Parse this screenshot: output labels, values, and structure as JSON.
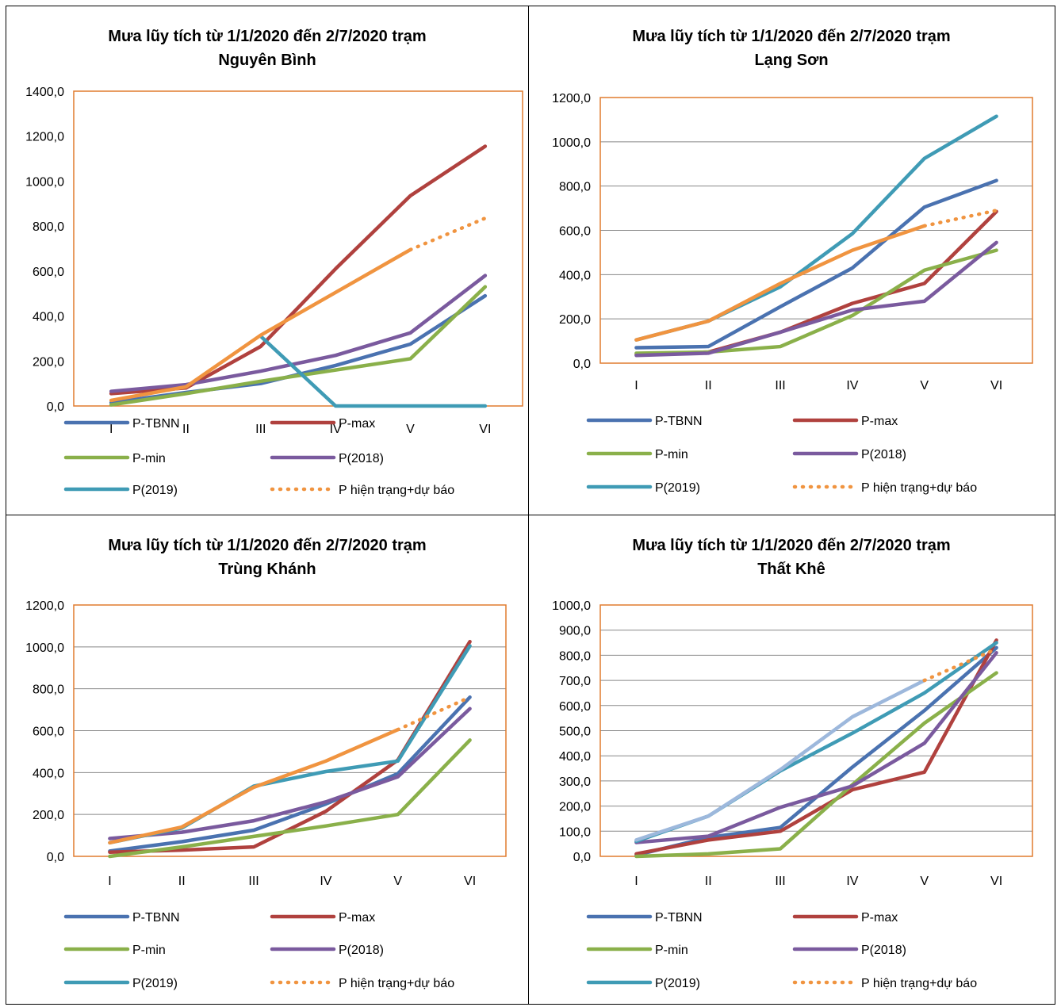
{
  "colors": {
    "P-TBNN": "#4a72b0",
    "P-max": "#b0413e",
    "P-min": "#8ab04a",
    "P(2018)": "#7a5a9e",
    "P(2019)": "#3f9bb5",
    "P hiện trạng+dự báo": "#f09440",
    "plot_border": "#e07b2e",
    "grid": "#888888"
  },
  "legend": {
    "labels": [
      "P-TBNN",
      "P-max",
      "P-min",
      "P(2018)",
      "P(2019)",
      "P hiện trạng+dự báo"
    ]
  },
  "chart_data": [
    {
      "type": "line",
      "title_line1": "Mưa lũy tích từ 1/1/2020 đến 2/7/2020 trạm",
      "title_line2": "Nguyên Bình",
      "categories": [
        "I",
        "II",
        "III",
        "IV",
        "V",
        "VI"
      ],
      "ylim": [
        0,
        1400
      ],
      "yticks": [
        "0,0",
        "200,0",
        "400,0",
        "600,0",
        "800,0",
        "1000,0",
        "1200,0",
        "1400,0"
      ],
      "grid": false,
      "series": [
        {
          "name": "P-TBNN",
          "values": [
            15,
            60,
            100,
            180,
            275,
            490
          ]
        },
        {
          "name": "P-max",
          "values": [
            55,
            80,
            265,
            610,
            935,
            1155
          ]
        },
        {
          "name": "P-min",
          "values": [
            5,
            55,
            110,
            160,
            210,
            530
          ]
        },
        {
          "name": "P(2018)",
          "values": [
            65,
            95,
            155,
            225,
            325,
            580
          ]
        },
        {
          "name": "P(2019)",
          "values": [
            null,
            null,
            310,
            0,
            0,
            0
          ]
        },
        {
          "name": "P hiện trạng+dự báo",
          "values": [
            25,
            85,
            315,
            505,
            695,
            null
          ],
          "forecast": [
            695,
            835
          ]
        }
      ]
    },
    {
      "type": "line",
      "title_line1": "Mưa lũy tích từ 1/1/2020 đến 2/7/2020 trạm",
      "title_line2": "Lạng Sơn",
      "categories": [
        "I",
        "II",
        "III",
        "IV",
        "V",
        "VI"
      ],
      "ylim": [
        0,
        1200
      ],
      "yticks": [
        "0,0",
        "200,0",
        "400,0",
        "600,0",
        "800,0",
        "1000,0",
        "1200,0"
      ],
      "grid": true,
      "series": [
        {
          "name": "P-TBNN",
          "values": [
            70,
            75,
            255,
            430,
            705,
            825
          ]
        },
        {
          "name": "P-max",
          "values": [
            40,
            50,
            140,
            270,
            360,
            685
          ]
        },
        {
          "name": "P-min",
          "values": [
            45,
            50,
            75,
            215,
            420,
            510
          ]
        },
        {
          "name": "P(2018)",
          "values": [
            35,
            45,
            140,
            240,
            280,
            545
          ]
        },
        {
          "name": "P(2019)",
          "values": [
            105,
            190,
            345,
            585,
            925,
            1115
          ]
        },
        {
          "name": "P hiện trạng+dự báo",
          "values": [
            105,
            190,
            360,
            510,
            620,
            null
          ],
          "forecast": [
            620,
            690
          ]
        }
      ]
    },
    {
      "type": "line",
      "title_line1": "Mưa lũy tích từ 1/1/2020 đến 2/7/2020 trạm",
      "title_line2": "Trùng Khánh",
      "categories": [
        "I",
        "II",
        "III",
        "IV",
        "V",
        "VI"
      ],
      "ylim": [
        0,
        1200
      ],
      "yticks": [
        "0,0",
        "200,0",
        "400,0",
        "600,0",
        "800,0",
        "1000,0",
        "1200,0"
      ],
      "grid": true,
      "series": [
        {
          "name": "P-TBNN",
          "values": [
            25,
            70,
            125,
            250,
            395,
            760
          ]
        },
        {
          "name": "P-max",
          "values": [
            20,
            30,
            45,
            215,
            460,
            1025
          ]
        },
        {
          "name": "P-min",
          "values": [
            0,
            45,
            95,
            145,
            200,
            555
          ]
        },
        {
          "name": "P(2018)",
          "values": [
            85,
            115,
            170,
            260,
            380,
            705
          ]
        },
        {
          "name": "P(2019)",
          "values": [
            65,
            135,
            335,
            405,
            455,
            1005
          ]
        },
        {
          "name": "P hiện trạng+dự báo",
          "values": [
            65,
            140,
            330,
            455,
            605,
            null
          ],
          "forecast": [
            605,
            760
          ]
        }
      ]
    },
    {
      "type": "line",
      "title_line1": "Mưa lũy tích từ 1/1/2020 đến 2/7/2020 trạm",
      "title_line2": "Thất Khê",
      "categories": [
        "I",
        "II",
        "III",
        "IV",
        "V",
        "VI"
      ],
      "ylim": [
        0,
        1000
      ],
      "yticks": [
        "0,0",
        "100,0",
        "200,0",
        "300,0",
        "400,0",
        "500,0",
        "600,0",
        "700,0",
        "800,0",
        "900,0",
        "1000,0"
      ],
      "grid": true,
      "series": [
        {
          "name": "P-TBNN",
          "values": [
            5,
            75,
            115,
            355,
            580,
            830
          ]
        },
        {
          "name": "P-max",
          "values": [
            10,
            65,
            100,
            265,
            335,
            860
          ]
        },
        {
          "name": "P-min",
          "values": [
            0,
            10,
            30,
            285,
            530,
            730
          ]
        },
        {
          "name": "P(2018)",
          "values": [
            55,
            80,
            195,
            280,
            450,
            810
          ]
        },
        {
          "name": "P(2019)",
          "values": [
            60,
            160,
            340,
            490,
            650,
            850
          ]
        },
        {
          "name": "P hiện trạng+dự báo",
          "values": [
            65,
            160,
            345,
            555,
            700,
            null
          ],
          "forecast": [
            700,
            825
          ],
          "color_override": "#9db8dc"
        }
      ]
    }
  ]
}
